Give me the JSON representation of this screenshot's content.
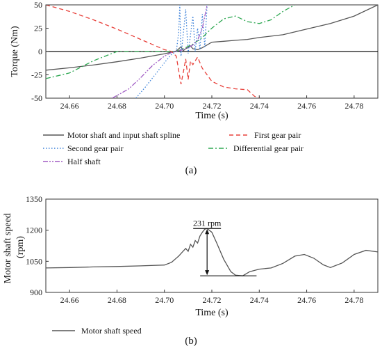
{
  "chart_data": [
    {
      "type": "line",
      "caption": "(a)",
      "xlabel": "Time (s)",
      "ylabel": "Torque (Nm)",
      "xlim": [
        24.65,
        24.79
      ],
      "ylim": [
        -50,
        50
      ],
      "xticks": [
        "24.66",
        "24.68",
        "24.70",
        "24.72",
        "24.74",
        "24.76",
        "24.78"
      ],
      "yticks": [
        "50",
        "25",
        "0",
        "-25",
        "-50"
      ],
      "grid": false,
      "legend_position": "bottom",
      "series": [
        {
          "name": "Motor shaft and input shaft spline",
          "color": "#555555",
          "style": "solid",
          "points": [
            [
              24.65,
              -20
            ],
            [
              24.66,
              -17.5
            ],
            [
              24.67,
              -14.5
            ],
            [
              24.68,
              -11
            ],
            [
              24.69,
              -7
            ],
            [
              24.7,
              -2.5
            ],
            [
              24.705,
              0.5
            ],
            [
              24.707,
              5
            ],
            [
              24.708,
              1
            ],
            [
              24.709,
              3
            ],
            [
              24.711,
              6
            ],
            [
              24.712,
              3
            ],
            [
              24.714,
              2
            ],
            [
              24.716,
              4
            ],
            [
              24.72,
              10
            ],
            [
              24.725,
              11
            ],
            [
              24.73,
              12
            ],
            [
              24.735,
              13
            ],
            [
              24.74,
              15
            ],
            [
              24.75,
              18
            ],
            [
              24.76,
              24
            ],
            [
              24.77,
              30
            ],
            [
              24.78,
              38
            ],
            [
              24.79,
              50
            ]
          ]
        },
        {
          "name": "First gear pair",
          "color": "#e8403a",
          "style": "dashed",
          "points": [
            [
              24.65,
              50
            ],
            [
              24.66,
              43
            ],
            [
              24.67,
              34
            ],
            [
              24.68,
              24
            ],
            [
              24.69,
              13
            ],
            [
              24.7,
              2
            ],
            [
              24.703,
              0
            ],
            [
              24.705,
              -5
            ],
            [
              24.707,
              -35
            ],
            [
              24.708,
              -22
            ],
            [
              24.709,
              -8
            ],
            [
              24.71,
              -30
            ],
            [
              24.711,
              -10
            ],
            [
              24.712,
              -14
            ],
            [
              24.714,
              -6
            ],
            [
              24.716,
              -18
            ],
            [
              24.718,
              -25
            ],
            [
              24.72,
              -32
            ],
            [
              24.725,
              -38
            ],
            [
              24.73,
              -40
            ],
            [
              24.735,
              -41
            ],
            [
              24.738,
              -48
            ],
            [
              24.74,
              -50
            ]
          ]
        },
        {
          "name": "Second gear pair",
          "color": "#3a80d9",
          "style": "dotted",
          "points": [
            [
              24.688,
              -50
            ],
            [
              24.692,
              -38
            ],
            [
              24.696,
              -25
            ],
            [
              24.7,
              -12
            ],
            [
              24.703,
              -3
            ],
            [
              24.705,
              0
            ],
            [
              24.706,
              20
            ],
            [
              24.7065,
              50
            ],
            [
              24.707,
              -5
            ],
            [
              24.709,
              45
            ],
            [
              24.71,
              -2
            ],
            [
              24.712,
              38
            ],
            [
              24.713,
              0
            ],
            [
              24.714,
              25
            ],
            [
              24.715,
              2
            ],
            [
              24.716,
              40
            ],
            [
              24.717,
              5
            ],
            [
              24.718,
              50
            ]
          ]
        },
        {
          "name": "Differential gear pair",
          "color": "#2ea852",
          "style": "dashdot",
          "points": [
            [
              24.65,
              -29
            ],
            [
              24.66,
              -23
            ],
            [
              24.67,
              -10
            ],
            [
              24.68,
              0
            ],
            [
              24.69,
              0
            ],
            [
              24.7,
              0
            ],
            [
              24.705,
              0
            ],
            [
              24.708,
              3
            ],
            [
              24.712,
              8
            ],
            [
              24.716,
              15
            ],
            [
              24.72,
              25
            ],
            [
              24.725,
              35
            ],
            [
              24.73,
              38
            ],
            [
              24.735,
              32
            ],
            [
              24.74,
              30
            ],
            [
              24.745,
              34
            ],
            [
              24.75,
              43
            ],
            [
              24.755,
              50
            ]
          ]
        },
        {
          "name": "Half shaft",
          "color": "#a05cc4",
          "style": "dashdotdot",
          "points": [
            [
              24.678,
              -50
            ],
            [
              24.685,
              -40
            ],
            [
              24.69,
              -28
            ],
            [
              24.695,
              -15
            ],
            [
              24.7,
              -5
            ],
            [
              24.703,
              -1
            ],
            [
              24.705,
              0
            ],
            [
              24.708,
              2
            ],
            [
              24.71,
              4
            ],
            [
              24.712,
              7
            ],
            [
              24.714,
              12
            ],
            [
              24.716,
              25
            ],
            [
              24.718,
              50
            ]
          ]
        }
      ]
    },
    {
      "type": "line",
      "caption": "(b)",
      "xlabel": "Time (s)",
      "ylabel": "Motor shaft speed (rpm)",
      "xlim": [
        24.65,
        24.79
      ],
      "ylim": [
        900,
        1350
      ],
      "xticks": [
        "24.66",
        "24.68",
        "24.70",
        "24.72",
        "24.74",
        "24.76",
        "24.78"
      ],
      "yticks": [
        "1350",
        "1200",
        "1050",
        "900"
      ],
      "grid": false,
      "legend_position": "bottom-left",
      "annotation": "231 rpm",
      "series": [
        {
          "name": "Motor shaft speed",
          "color": "#555555",
          "style": "solid",
          "points": [
            [
              24.65,
              1018
            ],
            [
              24.66,
              1020
            ],
            [
              24.67,
              1023
            ],
            [
              24.68,
              1025
            ],
            [
              24.69,
              1028
            ],
            [
              24.7,
              1032
            ],
            [
              24.703,
              1045
            ],
            [
              24.706,
              1075
            ],
            [
              24.708,
              1100
            ],
            [
              24.709,
              1112
            ],
            [
              24.71,
              1098
            ],
            [
              24.711,
              1132
            ],
            [
              24.712,
              1118
            ],
            [
              24.713,
              1150
            ],
            [
              24.714,
              1138
            ],
            [
              24.715,
              1172
            ],
            [
              24.716,
              1190
            ],
            [
              24.717,
              1205
            ],
            [
              24.718,
              1208
            ],
            [
              24.72,
              1190
            ],
            [
              24.722,
              1140
            ],
            [
              24.725,
              1060
            ],
            [
              24.728,
              1000
            ],
            [
              24.73,
              983
            ],
            [
              24.733,
              980
            ],
            [
              24.736,
              1000
            ],
            [
              24.74,
              1012
            ],
            [
              24.745,
              1018
            ],
            [
              24.75,
              1040
            ],
            [
              24.755,
              1075
            ],
            [
              24.759,
              1083
            ],
            [
              24.763,
              1065
            ],
            [
              24.767,
              1033
            ],
            [
              24.77,
              1020
            ],
            [
              24.775,
              1042
            ],
            [
              24.78,
              1083
            ],
            [
              24.785,
              1103
            ],
            [
              24.79,
              1095
            ]
          ]
        }
      ]
    }
  ]
}
